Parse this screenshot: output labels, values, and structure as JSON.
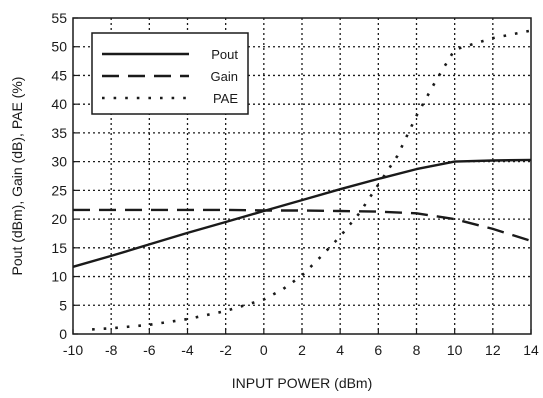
{
  "chart_data": {
    "type": "line",
    "xlabel": "INPUT POWER (dBm)",
    "ylabel": "Pout (dBm), Gain (dB), PAE (%)",
    "xlim": [
      -10,
      14
    ],
    "ylim": [
      0,
      55
    ],
    "x_ticks": [
      -10,
      -8,
      -6,
      -4,
      -2,
      0,
      2,
      4,
      6,
      8,
      10,
      12,
      14
    ],
    "y_ticks": [
      0,
      5,
      10,
      15,
      20,
      25,
      30,
      35,
      40,
      45,
      50,
      55
    ],
    "grid": true,
    "legend_position": "top-left",
    "series": [
      {
        "name": "Pout",
        "style": "solid",
        "x": [
          -10,
          -8,
          -6,
          -4,
          -2,
          0,
          2,
          4,
          6,
          8,
          10,
          12,
          14
        ],
        "values": [
          11.7,
          13.6,
          15.6,
          17.6,
          19.5,
          21.4,
          23.3,
          25.2,
          27.0,
          28.7,
          30.0,
          30.2,
          30.3
        ]
      },
      {
        "name": "Gain",
        "style": "dashed",
        "x": [
          -10,
          -8,
          -6,
          -4,
          -2,
          0,
          2,
          4,
          6,
          8,
          10,
          12,
          14
        ],
        "values": [
          21.6,
          21.6,
          21.6,
          21.6,
          21.6,
          21.5,
          21.5,
          21.4,
          21.3,
          21.0,
          20.0,
          18.3,
          16.2
        ]
      },
      {
        "name": "PAE",
        "style": "dotted",
        "x": [
          -9,
          -8,
          -6,
          -4,
          -2,
          0,
          1,
          2,
          3,
          4,
          5,
          6,
          7,
          8,
          9,
          10,
          12,
          14
        ],
        "values": [
          0.8,
          1.0,
          1.6,
          2.6,
          4.0,
          6.0,
          7.8,
          10.2,
          13.5,
          17.0,
          21.0,
          26.0,
          31.0,
          38.0,
          44.0,
          49.5,
          51.5,
          52.8
        ]
      }
    ]
  }
}
